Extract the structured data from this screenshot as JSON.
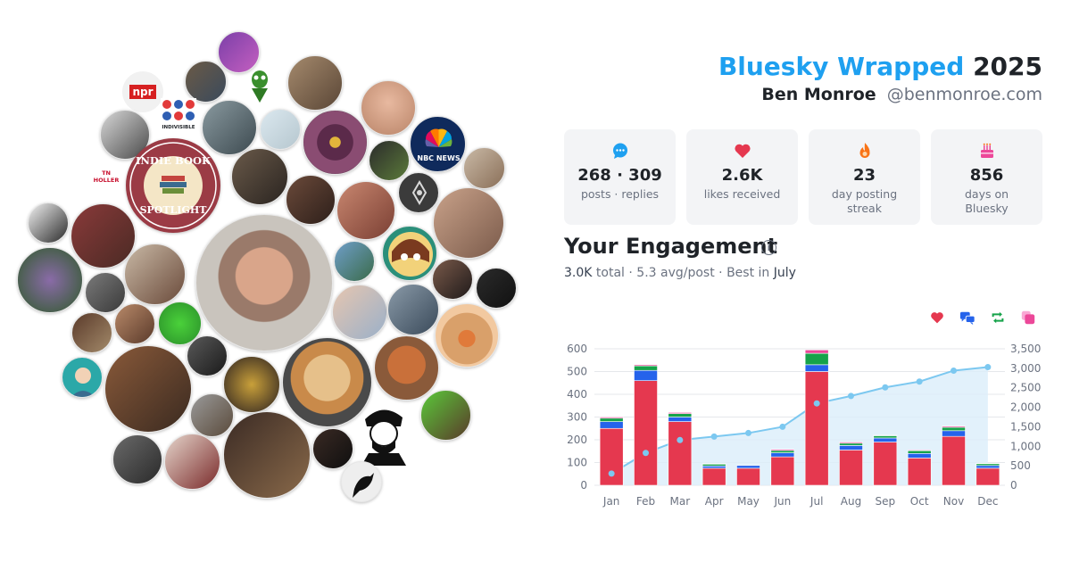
{
  "header": {
    "brand": "Bluesky Wrapped",
    "year": "2025",
    "name": "Ben Monroe",
    "handle": "@benmonroe.com"
  },
  "stats": [
    {
      "icon": "chat-bubble-icon",
      "value": "268 · 309",
      "label": "posts · replies",
      "color": "#1ea0f0"
    },
    {
      "icon": "heart-icon",
      "value": "2.6K",
      "label": "likes received",
      "color": "#e5384f"
    },
    {
      "icon": "flame-icon",
      "value": "23",
      "label": "day posting streak",
      "color": "#f97316"
    },
    {
      "icon": "cake-icon",
      "value": "856",
      "label": "days on Bluesky",
      "color": "#ec4899"
    }
  ],
  "engagement": {
    "title": "Your Engagement",
    "total": "3.0K",
    "total_word": "total",
    "avg": "5.3 avg/post",
    "best_prefix": "Best in",
    "best_month": "July"
  },
  "avatars": {
    "spotlight_top": "INDIE BOOK",
    "spotlight_bottom": "SPOTLIGHT",
    "npr": "npr",
    "indivisible": "INDIVISIBLE",
    "nbc": "NBC NEWS",
    "tnholler": "TN HOLLER"
  },
  "legend": [
    {
      "icon": "heart-icon",
      "color": "#e5384f"
    },
    {
      "icon": "reply-icon",
      "color": "#2563eb"
    },
    {
      "icon": "repost-icon",
      "color": "#16a34a"
    },
    {
      "icon": "quote-icon",
      "color": "#ec4899"
    }
  ],
  "chart_data": {
    "type": "bar",
    "categories": [
      "Jan",
      "Feb",
      "Mar",
      "Apr",
      "May",
      "Jun",
      "Jul",
      "Aug",
      "Sep",
      "Oct",
      "Nov",
      "Dec"
    ],
    "series": [
      {
        "values": [
          250,
          460,
          280,
          75,
          75,
          125,
          500,
          155,
          190,
          120,
          215,
          75
        ],
        "color": "#e5384f"
      },
      {
        "values": [
          30,
          45,
          20,
          10,
          12,
          18,
          30,
          20,
          18,
          20,
          25,
          12
        ],
        "color": "#2563eb"
      },
      {
        "values": [
          15,
          20,
          15,
          8,
          0,
          10,
          50,
          10,
          10,
          12,
          15,
          8
        ],
        "color": "#16a34a"
      },
      {
        "values": [
          5,
          5,
          5,
          2,
          0,
          5,
          15,
          5,
          2,
          3,
          5,
          2
        ],
        "color": "#ec4899"
      }
    ],
    "cumulative": {
      "values": [
        300,
        830,
        1160,
        1250,
        1340,
        1500,
        2100,
        2290,
        2510,
        2660,
        2940,
        3030
      ],
      "color": "#7cc8f0"
    },
    "ylim_left": [
      0,
      600
    ],
    "yticks_left": [
      "0",
      "100",
      "200",
      "300",
      "400",
      "500",
      "600"
    ],
    "ylim_right": [
      0,
      3500
    ],
    "yticks_right": [
      "0",
      "500",
      "1,000",
      "1,500",
      "2,000",
      "2,500",
      "3,000",
      "3,500"
    ],
    "grid": true
  }
}
